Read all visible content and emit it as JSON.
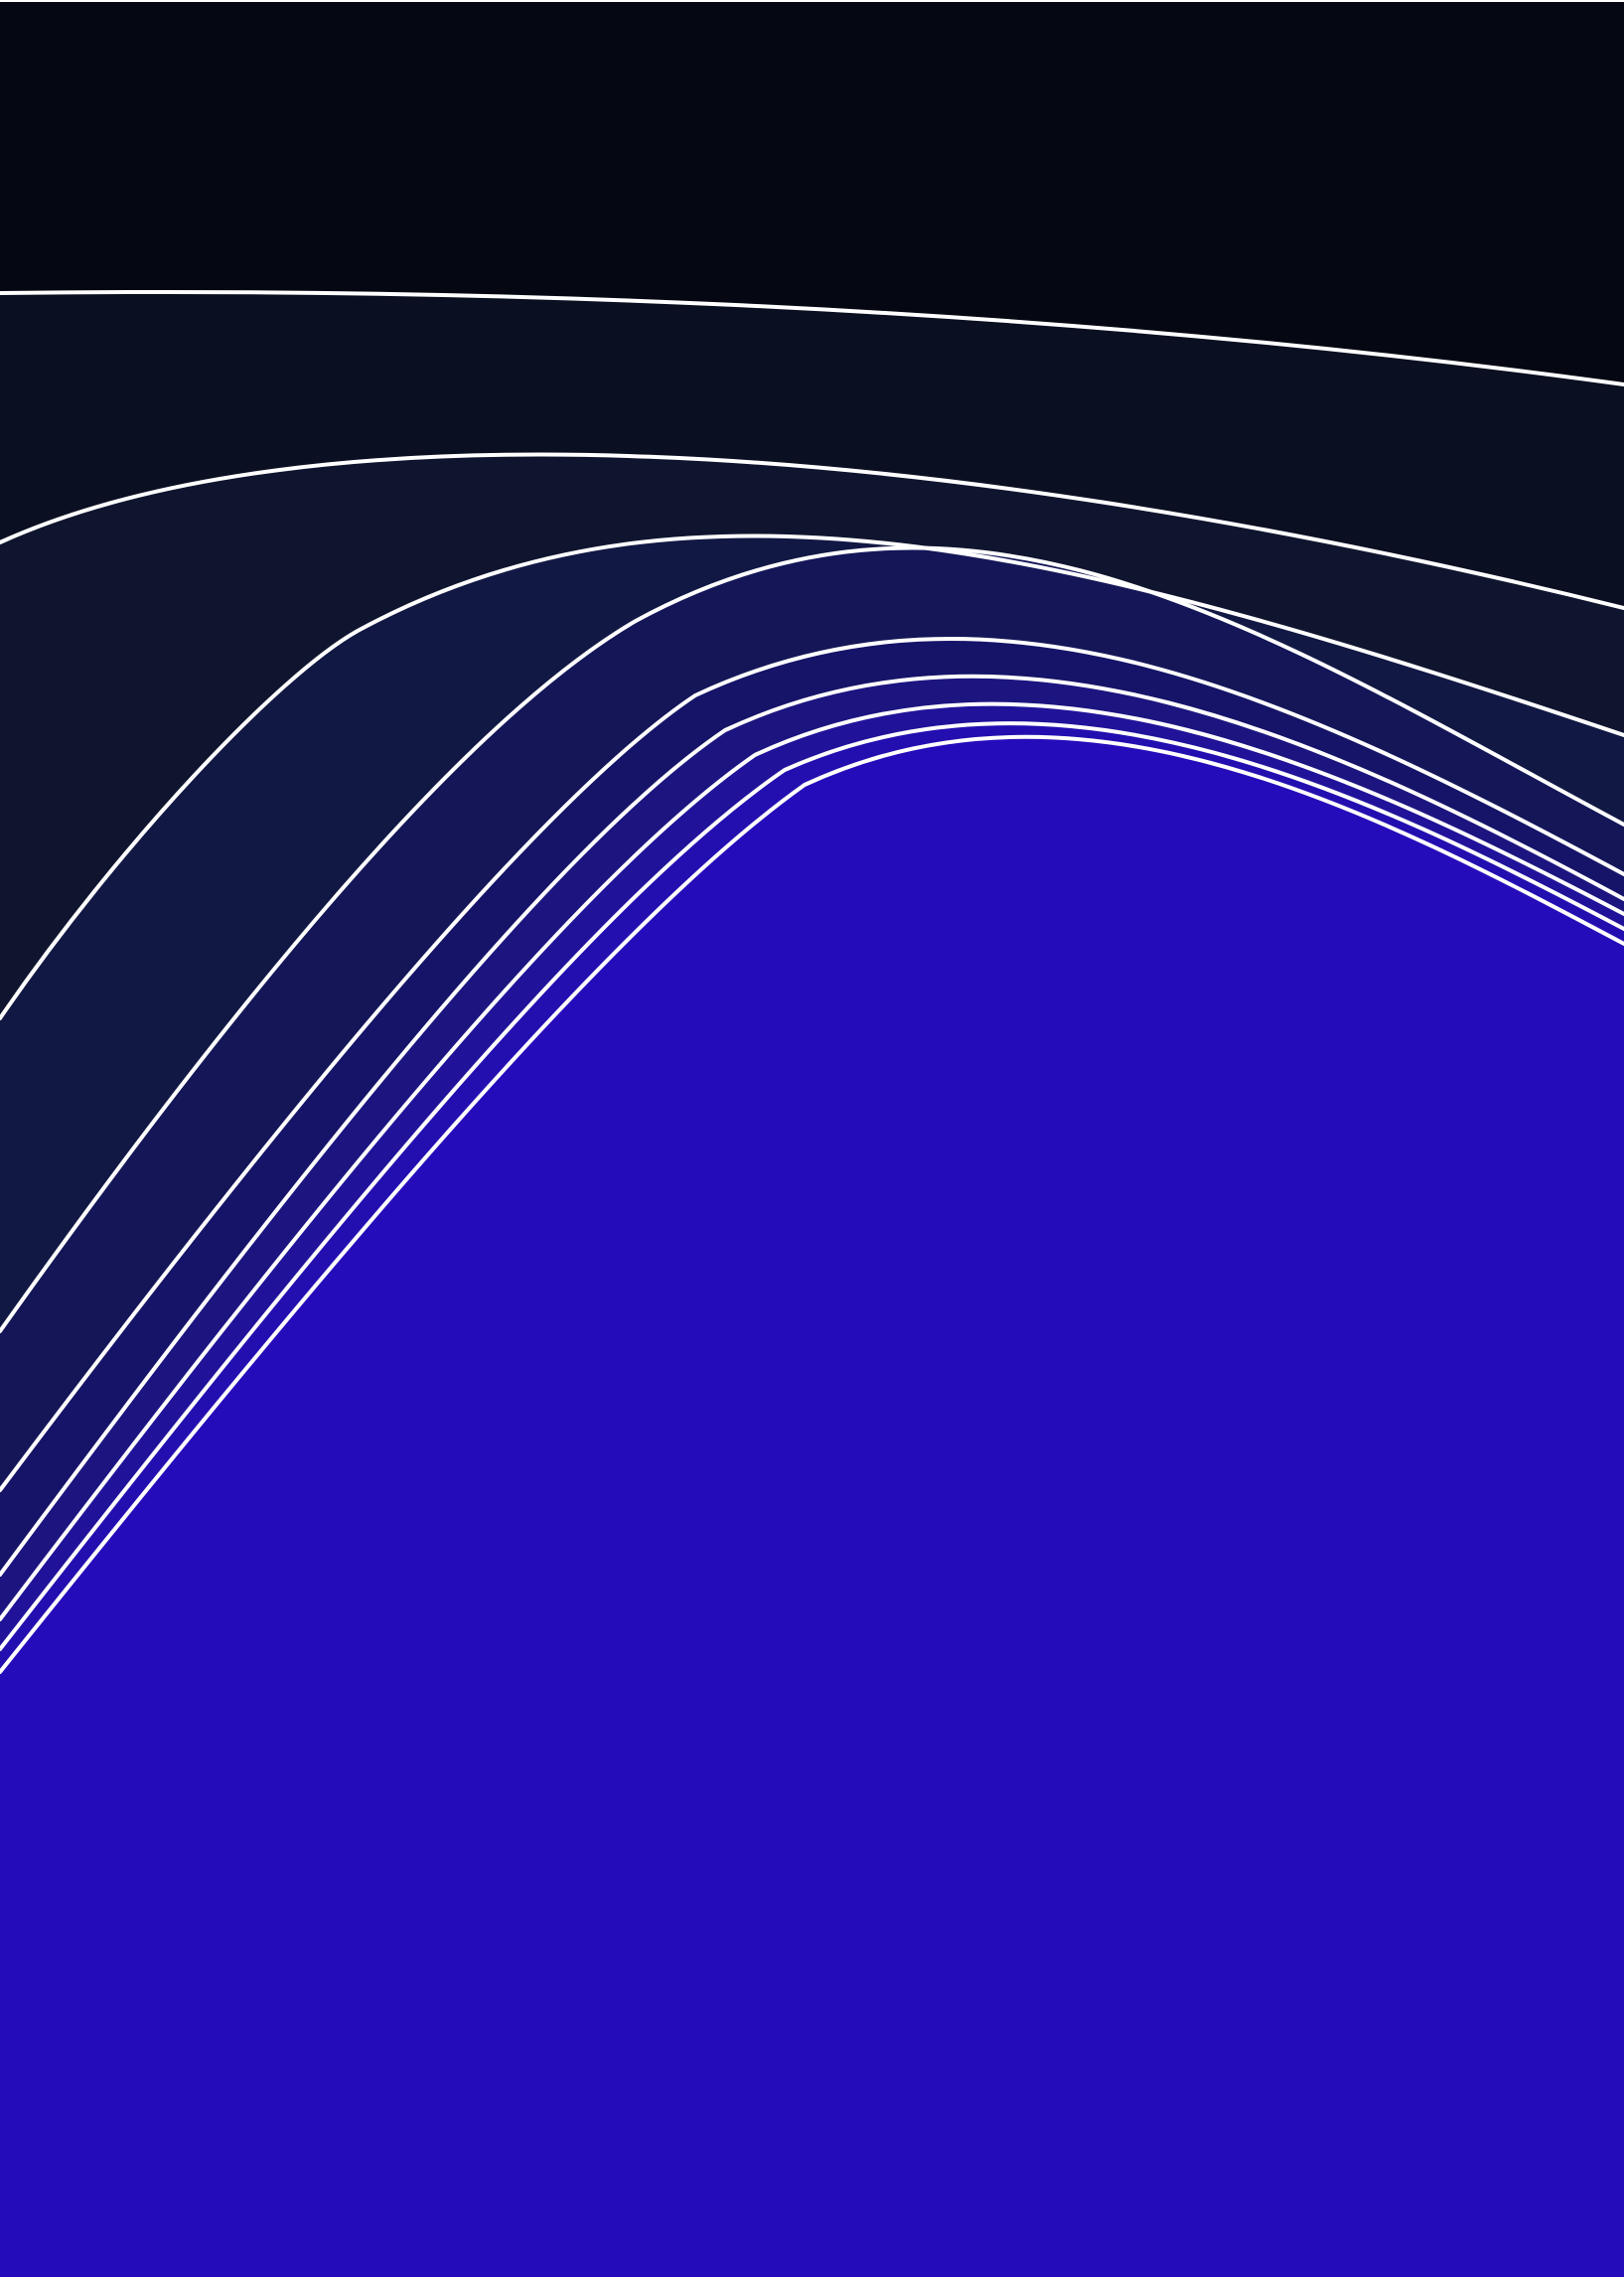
{
  "artwork": {
    "palette": {
      "background": "#ffffff",
      "band_colors": [
        "#050812",
        "#0b0f22",
        "#10152f",
        "#121844",
        "#141658",
        "#161468",
        "#1c1580",
        "#20139a",
        "#230fb0",
        "#250cbb"
      ],
      "line_color": "#ffffff"
    }
  }
}
